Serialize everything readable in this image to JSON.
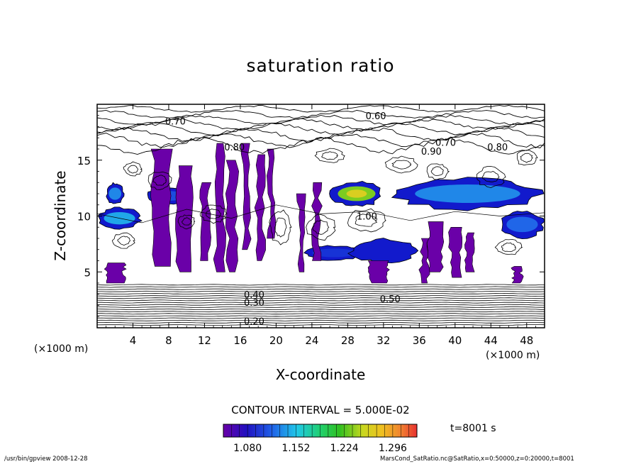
{
  "chart_data": {
    "type": "heatmap",
    "title": "saturation ratio",
    "xlabel": "X-coordinate",
    "ylabel": "Z-coordinate",
    "x_unit_left": "(×1000 m)",
    "x_unit_right": "(×1000 m)",
    "xlim": [
      0,
      50
    ],
    "ylim": [
      0,
      20
    ],
    "x_ticks": [
      4,
      8,
      12,
      16,
      20,
      24,
      28,
      32,
      36,
      40,
      44,
      48
    ],
    "y_ticks": [
      5,
      10,
      15
    ],
    "contour_interval_text": "CONTOUR INTERVAL = 5.000E-02",
    "time_text": "t=8001 s",
    "colorbar": {
      "range": [
        1.044,
        1.332
      ],
      "tick_values": [
        "1.080",
        "1.152",
        "1.224",
        "1.296"
      ],
      "colors": [
        "#6a00a8",
        "#1010c8",
        "#2060e8",
        "#20c8e8",
        "#20d070",
        "#30c020",
        "#c8d820",
        "#f0c020",
        "#f08030",
        "#e83030"
      ]
    },
    "contour_labels": [
      {
        "text": "0.70",
        "x": 7.6,
        "y": 18.5
      },
      {
        "text": "0.60",
        "x": 30.0,
        "y": 19.0
      },
      {
        "text": "0.80",
        "x": 14.2,
        "y": 16.2
      },
      {
        "text": "0.70",
        "x": 37.8,
        "y": 16.6
      },
      {
        "text": "0.90",
        "x": 36.2,
        "y": 15.8
      },
      {
        "text": "0.80",
        "x": 43.6,
        "y": 16.2
      },
      {
        "text": "1.00",
        "x": 29.0,
        "y": 10.0
      },
      {
        "text": "0.50",
        "x": 31.6,
        "y": 2.6
      },
      {
        "text": "0.40",
        "x": 16.4,
        "y": 3.0
      },
      {
        "text": "0.30",
        "x": 16.4,
        "y": 2.3
      },
      {
        "text": "0.20",
        "x": 16.4,
        "y": 0.6
      }
    ],
    "regions_above_1": [
      {
        "x0": 0,
        "x1": 5,
        "z0": 8.8,
        "z1": 10.8,
        "level": 1.16
      },
      {
        "x0": 1,
        "x1": 3,
        "z0": 11.0,
        "z1": 13.0,
        "level": 1.15
      },
      {
        "x0": 5.5,
        "x1": 10.5,
        "z0": 11.0,
        "z1": 12.6,
        "level": 1.13
      },
      {
        "x0": 26,
        "x1": 32,
        "z0": 10.8,
        "z1": 13.2,
        "level": 1.25
      },
      {
        "x0": 33,
        "x1": 49.8,
        "z0": 10.5,
        "z1": 13.5,
        "level": 1.15
      },
      {
        "x0": 45,
        "x1": 50,
        "z0": 8.0,
        "z1": 10.5,
        "level": 1.14
      },
      {
        "x0": 23,
        "x1": 30,
        "z0": 6.0,
        "z1": 7.4,
        "level": 1.12
      },
      {
        "x0": 28,
        "x1": 36,
        "z0": 5.8,
        "z1": 8.0,
        "level": 1.1
      }
    ]
  },
  "footer": {
    "left": "/usr/bin/gpview   2008-12-28",
    "right": "MarsCond_SatRatio.nc@SatRatio,x=0:50000,z=0:20000,t=8001"
  }
}
